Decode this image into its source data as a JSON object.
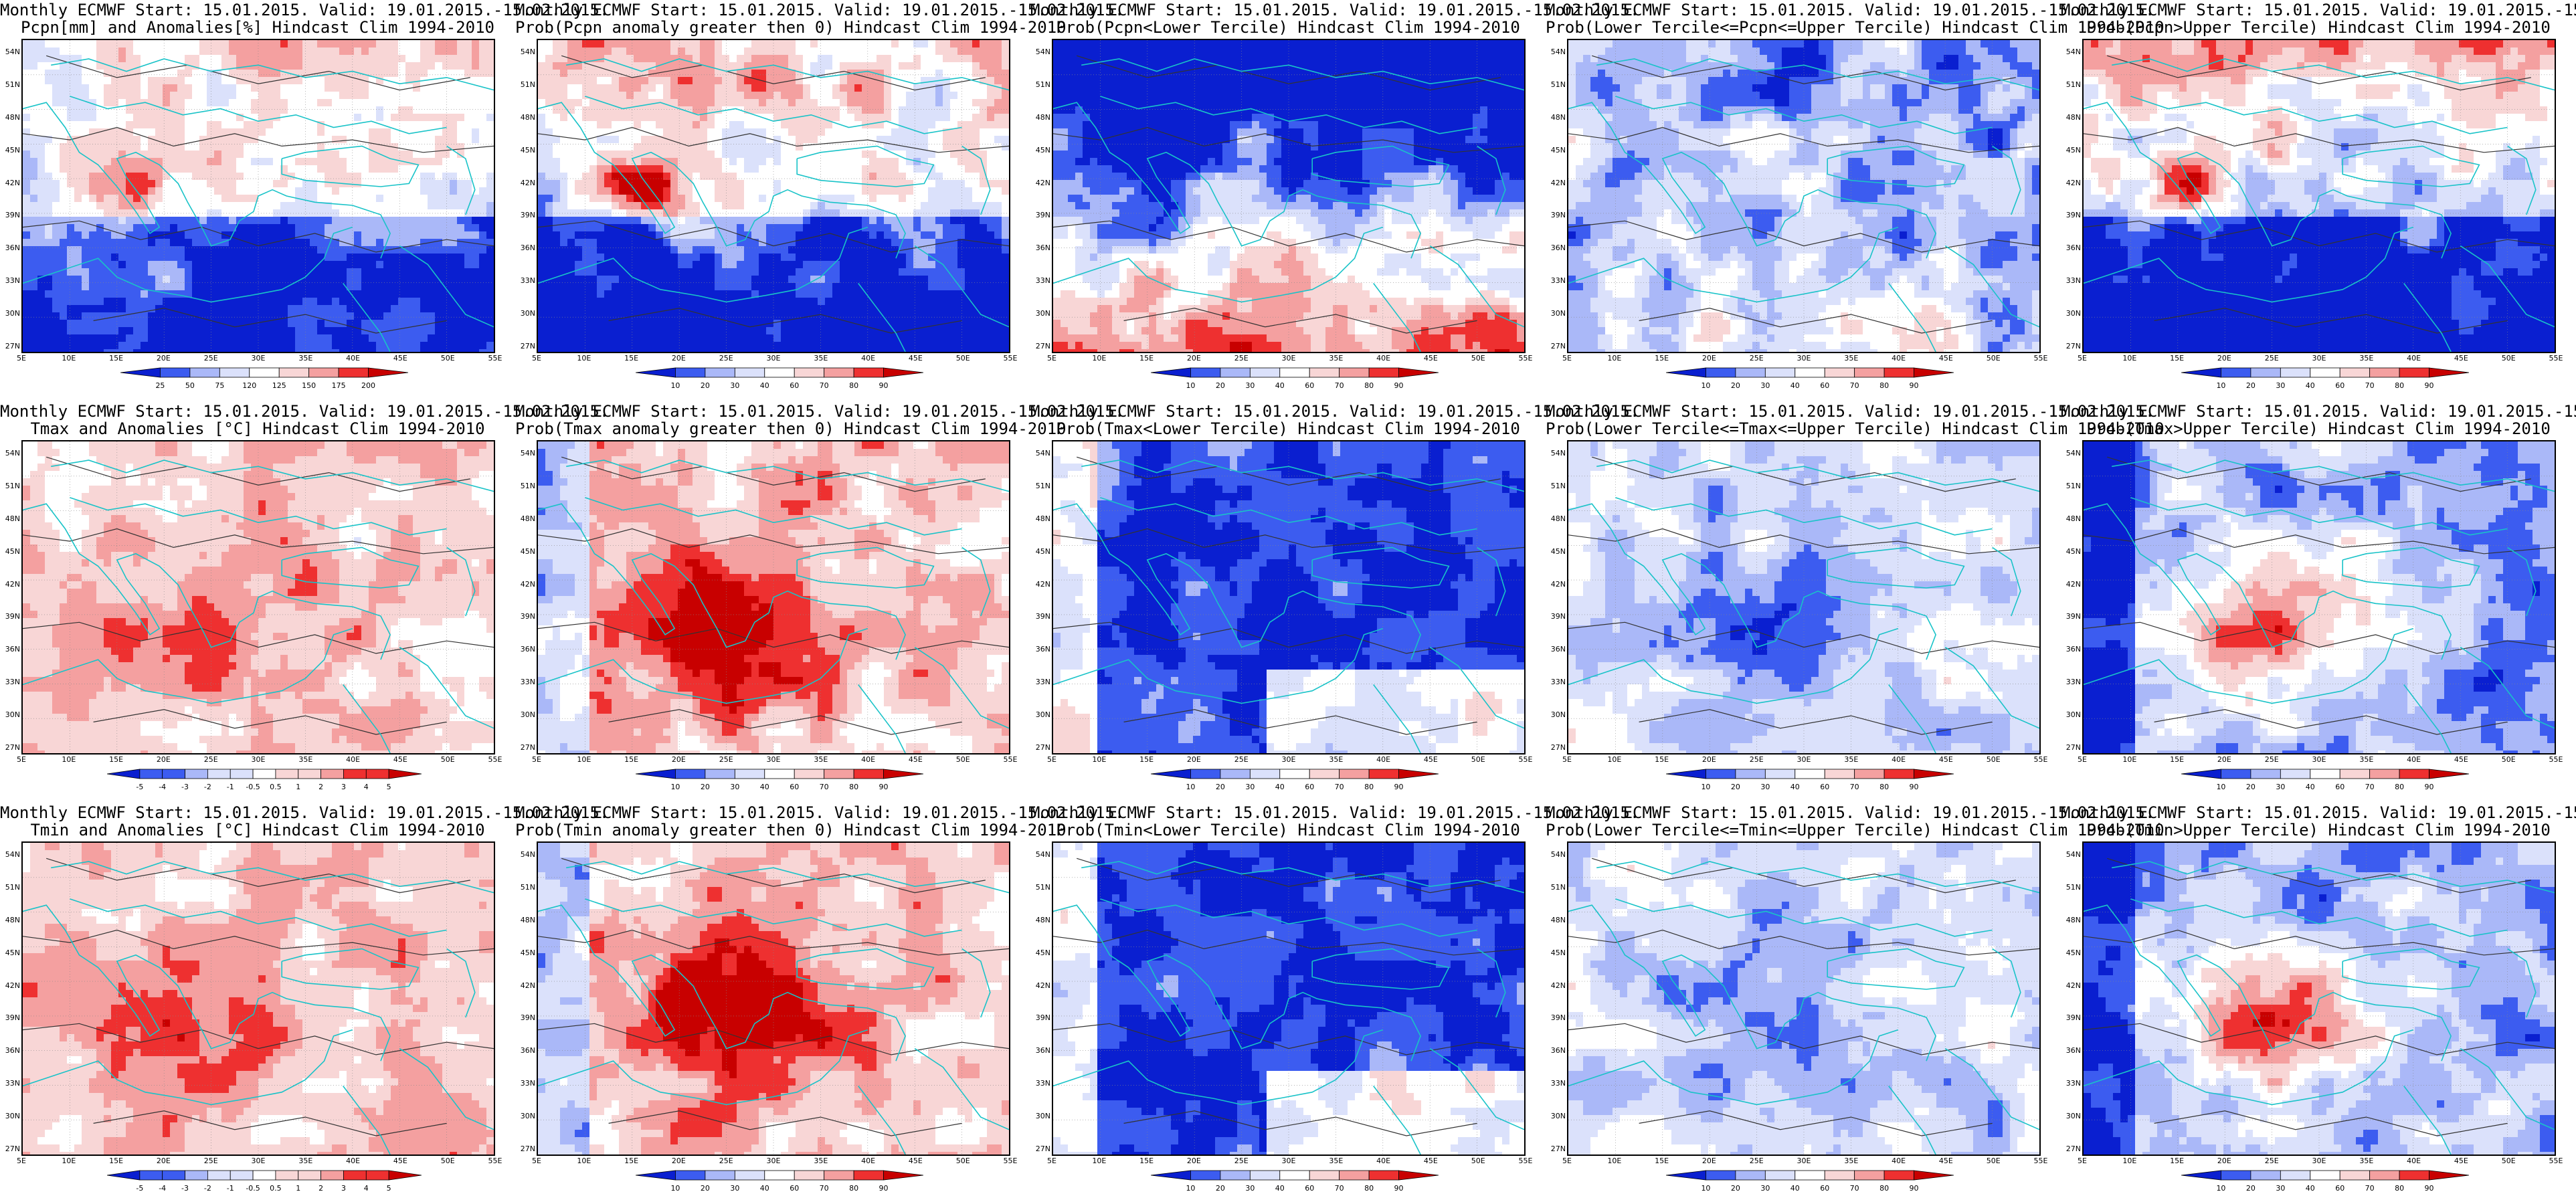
{
  "header_line": "Monthly ECMWF Start: 15.01.2015. Valid: 19.01.2015.-15.02.2015.",
  "lat_labels": [
    "54N",
    "51N",
    "48N",
    "45N",
    "42N",
    "39N",
    "36N",
    "33N",
    "30N",
    "27N"
  ],
  "lon_labels": [
    "5E",
    "10E",
    "15E",
    "20E",
    "25E",
    "30E",
    "35E",
    "40E",
    "45E",
    "50E",
    "55E"
  ],
  "panels": [
    {
      "subtitle": "Pcpn[mm] and Anomalies[%] Hindcast Clim 1994-2010",
      "scheme": "anom",
      "pattern": "pcpn_anom",
      "colorbar": [
        "25",
        "50",
        "75",
        "120",
        "125",
        "150",
        "175",
        "200"
      ]
    },
    {
      "subtitle": "Prob(Pcpn anomaly greater then 0) Hindcast Clim 1994-2010",
      "scheme": "prob",
      "pattern": "pcpn_prob",
      "colorbar": [
        "10",
        "20",
        "30",
        "40",
        "60",
        "70",
        "80",
        "90"
      ]
    },
    {
      "subtitle": "Prob(Pcpn<Lower Tercile) Hindcast Clim 1994-2010",
      "scheme": "prob",
      "pattern": "pcpn_lower",
      "colorbar": [
        "10",
        "20",
        "30",
        "40",
        "60",
        "70",
        "80",
        "90"
      ]
    },
    {
      "subtitle": "Prob(Lower Tercile<=Pcpn<=Upper Tercile) Hindcast Clim 1994-2010",
      "scheme": "prob",
      "pattern": "pcpn_mid",
      "colorbar": [
        "10",
        "20",
        "30",
        "40",
        "60",
        "70",
        "80",
        "90"
      ]
    },
    {
      "subtitle": "Prob(Pcpn>Upper Tercile) Hindcast Clim 1994-2010",
      "scheme": "prob",
      "pattern": "pcpn_prob",
      "colorbar": [
        "10",
        "20",
        "30",
        "40",
        "60",
        "70",
        "80",
        "90"
      ]
    },
    {
      "subtitle": "Tmax and Anomalies [°C] Hindcast Clim 1994-2010",
      "scheme": "anom",
      "pattern": "t_anom",
      "colorbar": [
        "-5",
        "-4",
        "-3",
        "-2",
        "-1",
        "-0.5",
        "0.5",
        "1",
        "2",
        "3",
        "4",
        "5"
      ]
    },
    {
      "subtitle": "Prob(Tmax anomaly greater then 0) Hindcast Clim 1994-2010",
      "scheme": "prob",
      "pattern": "t_prob",
      "colorbar": [
        "10",
        "20",
        "30",
        "40",
        "60",
        "70",
        "80",
        "90"
      ]
    },
    {
      "subtitle": "Prob(Tmax<Lower Tercile) Hindcast Clim 1994-2010",
      "scheme": "prob",
      "pattern": "t_lower",
      "colorbar": [
        "10",
        "20",
        "30",
        "40",
        "60",
        "70",
        "80",
        "90"
      ]
    },
    {
      "subtitle": "Prob(Lower Tercile<=Tmax<=Upper Tercile) Hindcast Clim 1994-2010",
      "scheme": "prob",
      "pattern": "t_mid",
      "colorbar": [
        "10",
        "20",
        "30",
        "40",
        "60",
        "70",
        "80",
        "90"
      ]
    },
    {
      "subtitle": "Prob(Tmax>Upper Tercile) Hindcast Clim 1994-2010",
      "scheme": "prob",
      "pattern": "t_upper",
      "colorbar": [
        "10",
        "20",
        "30",
        "40",
        "60",
        "70",
        "80",
        "90"
      ]
    },
    {
      "subtitle": "Tmin and Anomalies [°C] Hindcast Clim 1994-2010",
      "scheme": "anom",
      "pattern": "t_anom",
      "colorbar": [
        "-5",
        "-4",
        "-3",
        "-2",
        "-1",
        "-0.5",
        "0.5",
        "1",
        "2",
        "3",
        "4",
        "5"
      ]
    },
    {
      "subtitle": "Prob(Tmin anomaly greater then 0) Hindcast Clim 1994-2010",
      "scheme": "prob",
      "pattern": "t_prob",
      "colorbar": [
        "10",
        "20",
        "30",
        "40",
        "60",
        "70",
        "80",
        "90"
      ]
    },
    {
      "subtitle": "Prob(Tmin<Lower Tercile) Hindcast Clim 1994-2010",
      "scheme": "prob",
      "pattern": "t_lower",
      "colorbar": [
        "10",
        "20",
        "30",
        "40",
        "60",
        "70",
        "80",
        "90"
      ]
    },
    {
      "subtitle": "Prob(Lower Tercile<=Tmin<=Upper Tercile) Hindcast Clim 1994-2010",
      "scheme": "prob",
      "pattern": "t_mid",
      "colorbar": [
        "10",
        "20",
        "30",
        "40",
        "60",
        "70",
        "80",
        "90"
      ]
    },
    {
      "subtitle": "Prob(Tmin>Upper Tercile) Hindcast Clim 1994-2010",
      "scheme": "prob",
      "pattern": "t_upper",
      "colorbar": [
        "10",
        "20",
        "30",
        "40",
        "60",
        "70",
        "80",
        "90"
      ]
    }
  ],
  "colors": {
    "deep_blue": "#0a1fd0",
    "blue": "#3c5cf0",
    "light_blue": "#aab8f8",
    "pale_blue": "#dbe1fb",
    "white": "#ffffff",
    "pale_red": "#f8d6d6",
    "light_red": "#f4a0a0",
    "red": "#ee3030",
    "deep_red": "#c80000",
    "coast": "#19c3c8",
    "contour": "#333333"
  }
}
